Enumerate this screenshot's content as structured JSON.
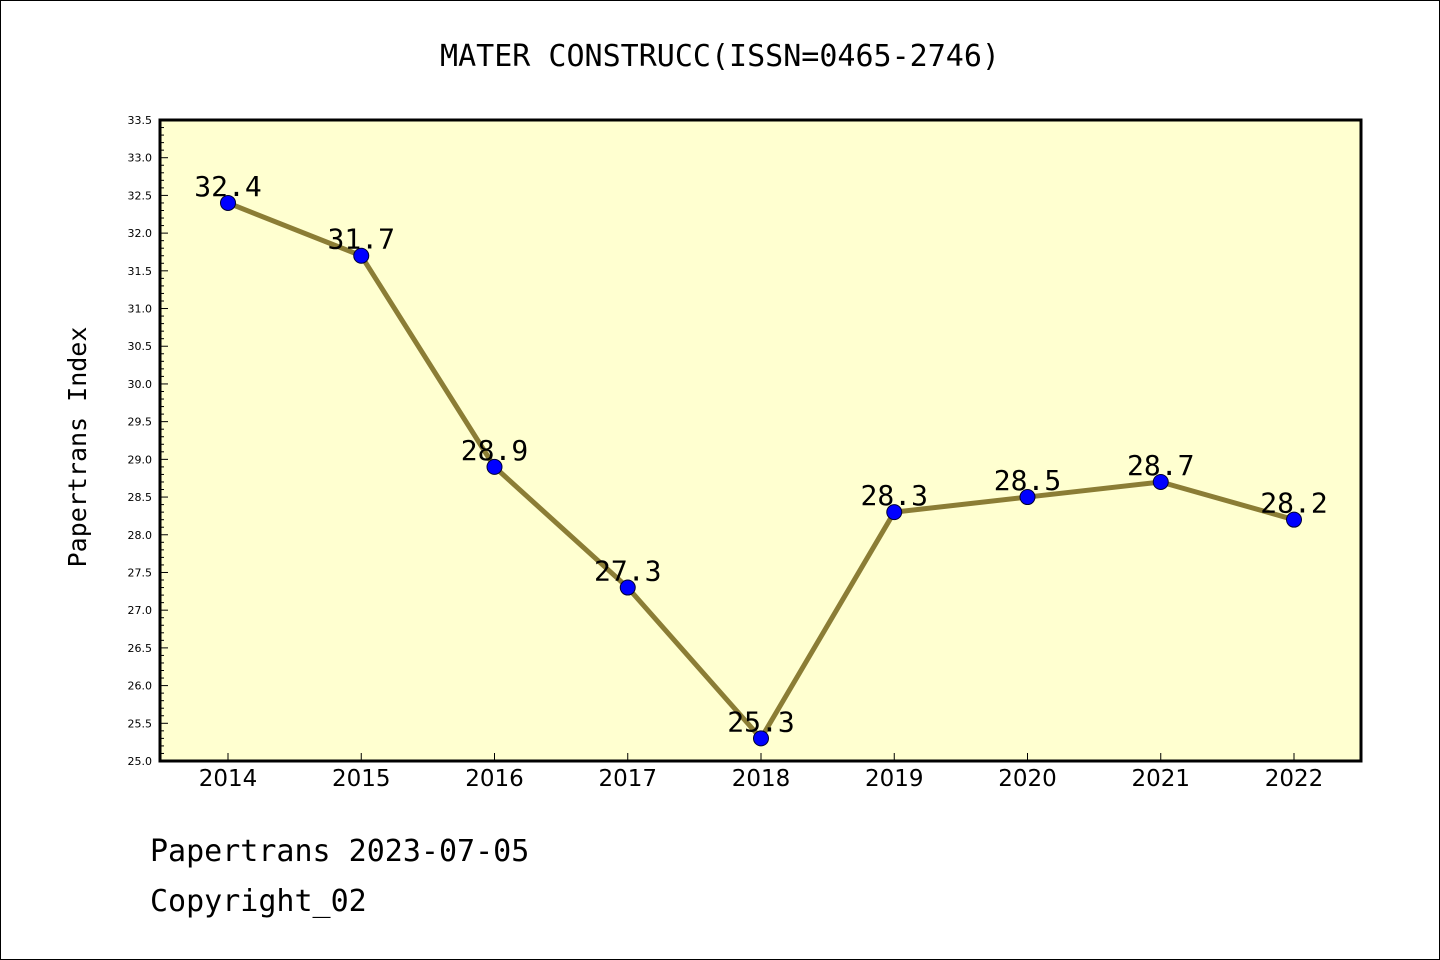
{
  "chart_data": {
    "type": "line",
    "title": "MATER CONSTRUCC(ISSN=0465-2746)",
    "xlabel": "",
    "ylabel": "Papertrans Index",
    "categories": [
      "2014",
      "2015",
      "2016",
      "2017",
      "2018",
      "2019",
      "2020",
      "2021",
      "2022"
    ],
    "series": [
      {
        "name": "Papertrans Index",
        "values": [
          32.4,
          31.7,
          28.9,
          27.3,
          25.3,
          28.3,
          28.5,
          28.7,
          28.2
        ],
        "labels": [
          "32.4",
          "31.7",
          "28.9",
          "27.3",
          "25.3",
          "28.3",
          "28.5",
          "28.7",
          "28.2"
        ]
      }
    ],
    "ylim": [
      25.0,
      33.5
    ],
    "yticks": [
      "25.0",
      "25.5",
      "26.0",
      "26.5",
      "27.0",
      "27.5",
      "28.0",
      "28.5",
      "29.0",
      "29.5",
      "30.0",
      "30.5",
      "31.0",
      "31.5",
      "32.0",
      "32.5",
      "33.0",
      "33.5"
    ],
    "grid": false,
    "colors": {
      "plot_background": "#ffffd0",
      "line": "#8b7d35",
      "marker": "#0000ff",
      "axis": "#000000"
    }
  },
  "footer": {
    "date_line": "Papertrans 2023-07-05",
    "copyright_line": "Copyright_02"
  }
}
